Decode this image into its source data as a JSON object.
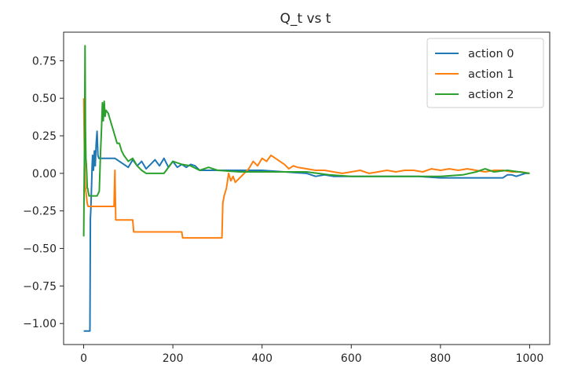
{
  "chart_data": {
    "type": "line",
    "title": "Q_t vs t",
    "xlabel": "",
    "ylabel": "",
    "xlim": [
      -45,
      1045
    ],
    "ylim": [
      -1.14,
      0.94
    ],
    "x_ticks": [
      0,
      200,
      400,
      600,
      800,
      1000
    ],
    "x_tick_labels": [
      "0",
      "200",
      "400",
      "600",
      "800",
      "1000"
    ],
    "y_ticks": [
      0.75,
      0.5,
      0.25,
      0.0,
      -0.25,
      -0.5,
      -0.75,
      -1.0
    ],
    "y_tick_labels": [
      "0.75",
      "0.50",
      "0.25",
      "0.00",
      "−0.25",
      "−0.50",
      "−0.75",
      "−1.00"
    ],
    "grid": false,
    "legend": "top-right",
    "series": [
      {
        "name": "action 0",
        "color": "#1f77b4",
        "x": [
          0,
          1,
          2,
          3,
          4,
          5,
          6,
          7,
          8,
          9,
          10,
          11,
          12,
          13,
          14,
          15,
          16,
          17,
          18,
          19,
          20,
          22,
          24,
          26,
          28,
          30,
          32,
          34,
          36,
          40,
          45,
          50,
          60,
          70,
          80,
          90,
          100,
          110,
          120,
          130,
          140,
          150,
          160,
          170,
          180,
          190,
          200,
          210,
          220,
          230,
          240,
          250,
          260,
          280,
          300,
          350,
          400,
          450,
          500,
          520,
          540,
          560,
          580,
          600,
          650,
          700,
          750,
          800,
          850,
          900,
          940,
          950,
          960,
          970,
          980,
          990,
          1000
        ],
        "y": [
          -1.05,
          -1.05,
          -1.05,
          -1.05,
          -1.05,
          -1.05,
          -1.05,
          -1.05,
          -1.05,
          -1.05,
          -1.05,
          -1.05,
          -1.05,
          -1.05,
          -1.05,
          -0.3,
          -0.25,
          -0.15,
          -0.05,
          0.05,
          0.12,
          0.02,
          0.15,
          0.05,
          0.2,
          0.28,
          0.12,
          0.1,
          0.1,
          0.1,
          0.1,
          0.1,
          0.1,
          0.1,
          0.08,
          0.06,
          0.04,
          0.09,
          0.05,
          0.08,
          0.03,
          0.06,
          0.09,
          0.05,
          0.1,
          0.04,
          0.08,
          0.04,
          0.06,
          0.04,
          0.06,
          0.05,
          0.02,
          0.02,
          0.02,
          0.02,
          0.02,
          0.01,
          0.0,
          -0.02,
          -0.01,
          -0.02,
          -0.02,
          -0.02,
          -0.02,
          -0.02,
          -0.02,
          -0.03,
          -0.03,
          -0.03,
          -0.03,
          -0.01,
          -0.01,
          -0.02,
          -0.01,
          0.0,
          0.0
        ]
      },
      {
        "name": "action 1",
        "color": "#ff7f0e",
        "x": [
          0,
          1,
          2,
          3,
          4,
          5,
          6,
          8,
          10,
          12,
          14,
          16,
          18,
          20,
          30,
          40,
          50,
          60,
          68,
          70,
          72,
          74,
          80,
          90,
          100,
          110,
          112,
          120,
          140,
          160,
          180,
          200,
          220,
          222,
          230,
          250,
          270,
          290,
          310,
          312,
          315,
          320,
          325,
          330,
          335,
          340,
          350,
          360,
          370,
          380,
          390,
          400,
          410,
          420,
          430,
          440,
          450,
          460,
          470,
          480,
          500,
          520,
          540,
          560,
          580,
          600,
          620,
          640,
          660,
          680,
          700,
          720,
          740,
          760,
          780,
          800,
          820,
          840,
          860,
          880,
          900,
          920,
          940,
          960,
          980,
          1000
        ],
        "y": [
          0.5,
          0.3,
          0.1,
          -0.05,
          -0.1,
          -0.12,
          -0.15,
          -0.2,
          -0.22,
          -0.22,
          -0.22,
          -0.22,
          -0.22,
          -0.22,
          -0.22,
          -0.22,
          -0.22,
          -0.22,
          -0.22,
          0.02,
          -0.31,
          -0.31,
          -0.31,
          -0.31,
          -0.31,
          -0.31,
          -0.39,
          -0.39,
          -0.39,
          -0.39,
          -0.39,
          -0.39,
          -0.39,
          -0.43,
          -0.43,
          -0.43,
          -0.43,
          -0.43,
          -0.43,
          -0.2,
          -0.15,
          -0.1,
          0.0,
          -0.05,
          -0.02,
          -0.06,
          -0.03,
          0.0,
          0.03,
          0.08,
          0.05,
          0.1,
          0.08,
          0.12,
          0.1,
          0.08,
          0.06,
          0.03,
          0.05,
          0.04,
          0.03,
          0.02,
          0.02,
          0.01,
          0.0,
          0.01,
          0.02,
          0.0,
          0.01,
          0.02,
          0.01,
          0.02,
          0.02,
          0.01,
          0.03,
          0.02,
          0.03,
          0.02,
          0.03,
          0.02,
          0.01,
          0.02,
          0.02,
          0.01,
          0.01,
          0.0
        ]
      },
      {
        "name": "action 2",
        "color": "#2ca02c",
        "x": [
          0,
          1,
          2,
          3,
          4,
          5,
          6,
          7,
          8,
          9,
          10,
          12,
          14,
          16,
          18,
          20,
          24,
          28,
          30,
          35,
          38,
          40,
          42,
          44,
          46,
          48,
          50,
          55,
          60,
          65,
          70,
          75,
          80,
          85,
          90,
          95,
          100,
          110,
          120,
          130,
          140,
          160,
          180,
          200,
          220,
          240,
          260,
          280,
          300,
          350,
          400,
          450,
          500,
          550,
          600,
          650,
          700,
          750,
          800,
          850,
          880,
          900,
          920,
          950,
          1000
        ],
        "y": [
          -0.42,
          -0.1,
          0.2,
          0.85,
          0.3,
          0.1,
          0.05,
          0.0,
          -0.1,
          -0.1,
          -0.12,
          -0.15,
          -0.15,
          -0.15,
          -0.15,
          -0.15,
          -0.15,
          -0.15,
          -0.15,
          -0.12,
          0.15,
          0.3,
          0.47,
          0.35,
          0.48,
          0.38,
          0.42,
          0.4,
          0.35,
          0.3,
          0.25,
          0.2,
          0.2,
          0.15,
          0.12,
          0.1,
          0.08,
          0.1,
          0.05,
          0.02,
          0.0,
          0.0,
          0.0,
          0.08,
          0.06,
          0.05,
          0.02,
          0.04,
          0.02,
          0.01,
          0.01,
          0.01,
          0.01,
          -0.01,
          -0.02,
          -0.02,
          -0.02,
          -0.02,
          -0.02,
          -0.01,
          0.01,
          0.03,
          0.01,
          0.02,
          0.0
        ]
      }
    ]
  }
}
